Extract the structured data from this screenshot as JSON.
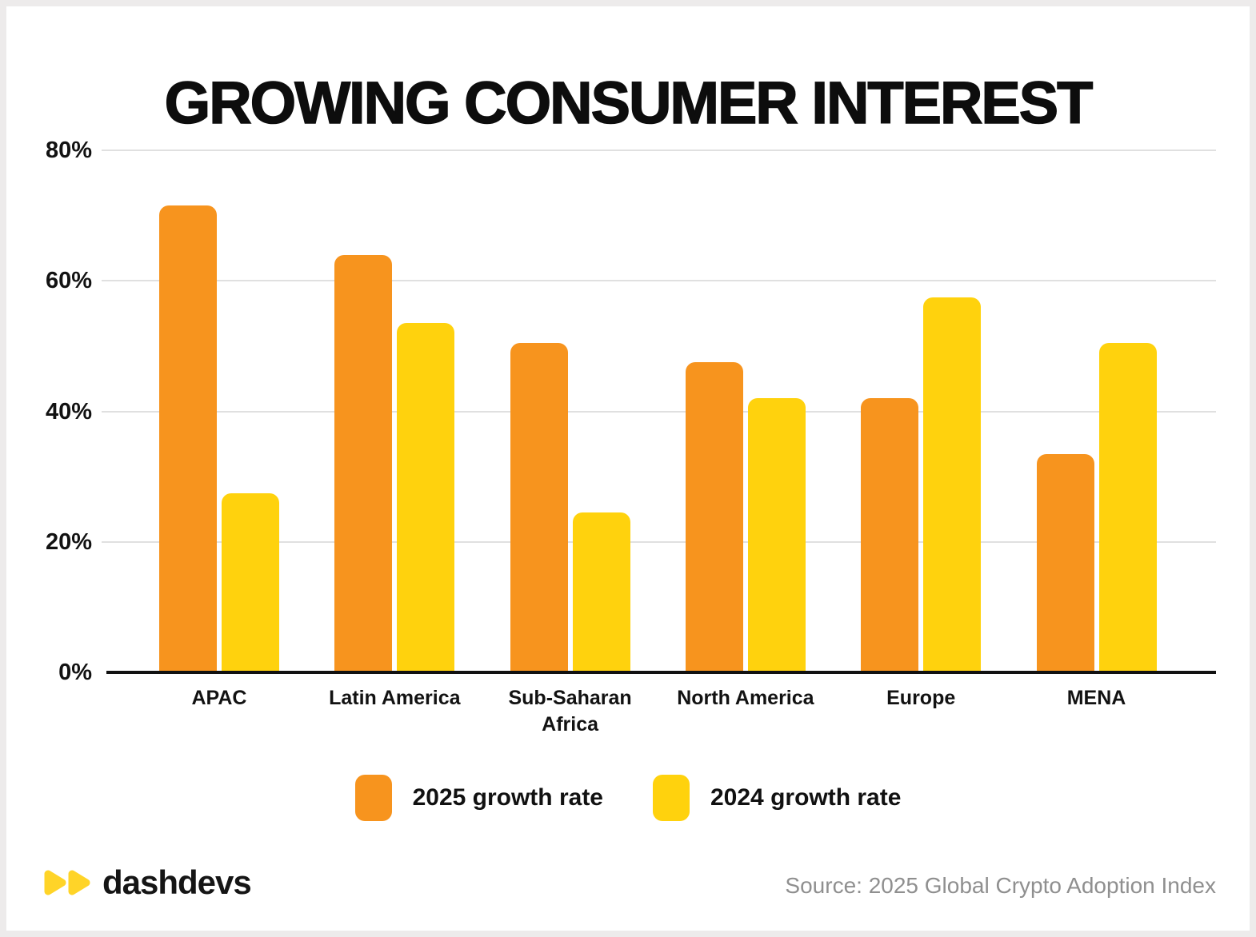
{
  "title": "GROWING CONSUMER INTEREST",
  "chart_data": {
    "type": "bar",
    "categories": [
      "APAC",
      "Latin America",
      "Sub-Saharan Africa",
      "North America",
      "Europe",
      "MENA"
    ],
    "series": [
      {
        "name": "2025 growth rate",
        "color": "#F7941E",
        "values": [
          71.5,
          64,
          50.5,
          47.5,
          42,
          33.5
        ]
      },
      {
        "name": "2024 growth rate",
        "color": "#FFD20D",
        "values": [
          27.5,
          53.5,
          24.5,
          42,
          57.5,
          50.5
        ]
      }
    ],
    "title": "GROWING CONSUMER INTEREST",
    "xlabel": "",
    "ylabel": "",
    "ylim": [
      0,
      80
    ],
    "yticks": [
      "0%",
      "20%",
      "40%",
      "60%",
      "80%"
    ],
    "grid": true,
    "legend_position": "bottom"
  },
  "footer": {
    "logo_text": "dashdevs",
    "logo_icon": "double-play-icon",
    "logo_icon_color": "#FFD428",
    "source": "Source: 2025 Global Crypto Adoption Index"
  },
  "colors": {
    "bar_2025": "#F7941E",
    "bar_2024": "#FFD20D",
    "axis": "#111111",
    "gridline": "#E0E0E0",
    "text": "#0D0D0D",
    "source_text": "#8F8F8F",
    "frame": "#EDEBEB",
    "background": "#FFFFFF"
  }
}
